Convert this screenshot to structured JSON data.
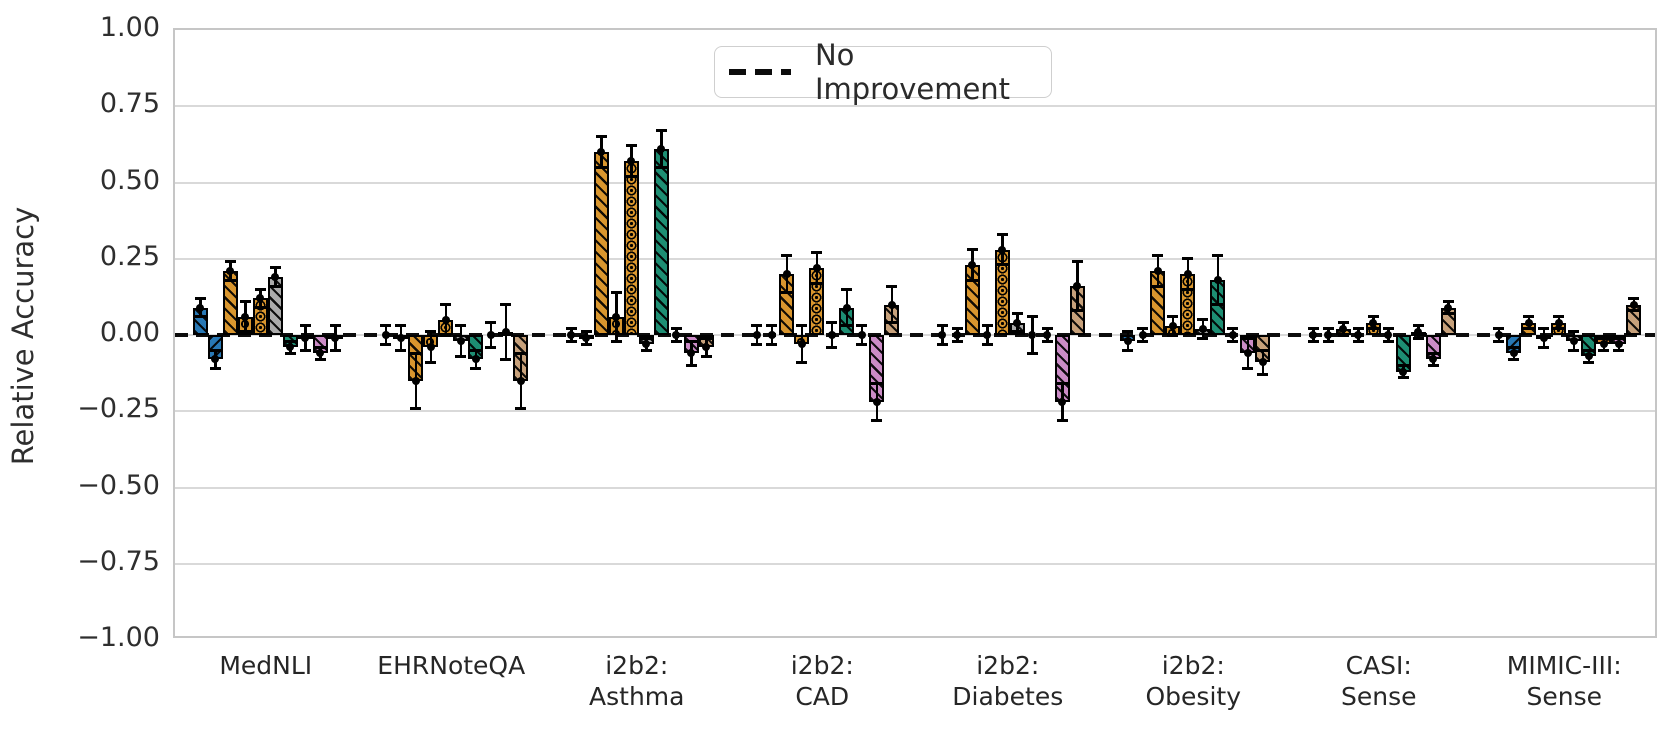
{
  "figure": {
    "ylabel": "Relative Accuracy",
    "legend": {
      "label": "No Improvement"
    }
  },
  "y_axis": {
    "ticks": [
      "1.00",
      "0.75",
      "0.50",
      "0.25",
      "0.00",
      "−0.25",
      "−0.50",
      "−0.75",
      "−1.00"
    ],
    "tick_values": [
      1.0,
      0.75,
      0.5,
      0.25,
      0.0,
      -0.25,
      -0.5,
      -0.75,
      -1.0
    ]
  },
  "x_axis": {
    "tick_lines": [
      [
        "MedNLI"
      ],
      [
        "EHRNoteQA"
      ],
      [
        "i2b2:",
        "Asthma"
      ],
      [
        "i2b2:",
        "CAD"
      ],
      [
        "i2b2:",
        "Diabetes"
      ],
      [
        "i2b2:",
        "Obesity"
      ],
      [
        "CASI:",
        "Sense"
      ],
      [
        "MIMIC-III:",
        "Sense"
      ]
    ]
  },
  "chart_data": {
    "type": "bar",
    "title": "",
    "xlabel": "",
    "ylabel": "Relative Accuracy",
    "ylim": [
      -1.0,
      1.0
    ],
    "grid": true,
    "baseline": {
      "y": 0,
      "style": "dashed",
      "color": "#0c0c0c",
      "label": "No Improvement",
      "legend_position": "top-center"
    },
    "error_bars": true,
    "marker": {
      "shape": "circle",
      "color": "#000000"
    },
    "categories": [
      "MedNLI",
      "EHRNoteQA",
      "i2b2: Asthma",
      "i2b2: CAD",
      "i2b2: Diabetes",
      "i2b2: Obesity",
      "CASI: Sense",
      "MIMIC-III: Sense"
    ],
    "series": [
      {
        "name": "series-1-blue-backslash",
        "color": "#2878b5",
        "hatch": "\\",
        "values": [
          0.09,
          0.0,
          0.0,
          0.0,
          0.0,
          -0.02,
          0.0,
          0.0
        ],
        "errors": [
          0.03,
          0.03,
          0.02,
          0.03,
          0.03,
          0.03,
          0.02,
          0.02
        ]
      },
      {
        "name": "series-2-blue-slash",
        "color": "#2878b5",
        "hatch": "/",
        "values": [
          -0.08,
          -0.01,
          -0.01,
          0.0,
          0.0,
          0.0,
          0.0,
          -0.06
        ],
        "errors": [
          0.03,
          0.04,
          0.02,
          0.03,
          0.02,
          0.02,
          0.02,
          0.02
        ]
      },
      {
        "name": "series-3-orange-backslash",
        "color": "#d9962e",
        "hatch": "\\",
        "values": [
          0.21,
          -0.15,
          0.6,
          0.2,
          0.23,
          0.21,
          0.02,
          0.04
        ],
        "errors": [
          0.03,
          0.09,
          0.05,
          0.06,
          0.05,
          0.05,
          0.02,
          0.02
        ]
      },
      {
        "name": "series-4-orange-circles",
        "color": "#d9962e",
        "hatch": "o",
        "values": [
          0.06,
          -0.04,
          0.06,
          -0.03,
          0.0,
          0.03,
          0.0,
          -0.01
        ],
        "errors": [
          0.05,
          0.05,
          0.08,
          0.06,
          0.03,
          0.03,
          0.02,
          0.03
        ]
      },
      {
        "name": "series-5-orange-dotted-circles",
        "color": "#d9962e",
        "hatch": "O.",
        "values": [
          0.12,
          0.05,
          0.57,
          0.22,
          0.28,
          0.2,
          0.04,
          0.04
        ],
        "errors": [
          0.03,
          0.05,
          0.05,
          0.05,
          0.05,
          0.05,
          0.02,
          0.02
        ]
      },
      {
        "name": "series-6-gray-backslash",
        "color": "#ababab",
        "hatch": "\\",
        "values": [
          0.19,
          -0.02,
          -0.03,
          0.0,
          0.04,
          0.02,
          0.0,
          -0.02
        ],
        "errors": [
          0.03,
          0.05,
          0.02,
          0.04,
          0.03,
          0.03,
          0.02,
          0.03
        ]
      },
      {
        "name": "series-7-green-backslash",
        "color": "#1d8e73",
        "hatch": "\\",
        "values": [
          -0.04,
          -0.08,
          0.61,
          0.09,
          0.0,
          0.18,
          -0.12,
          -0.07
        ],
        "errors": [
          0.02,
          0.03,
          0.06,
          0.06,
          0.06,
          0.08,
          0.02,
          0.02
        ]
      },
      {
        "name": "series-8-darkorange-slash",
        "color": "#c87e2e",
        "hatch": "/",
        "values": [
          -0.01,
          0.0,
          0.0,
          0.0,
          0.0,
          0.0,
          0.01,
          -0.03
        ],
        "errors": [
          0.04,
          0.04,
          0.02,
          0.03,
          0.02,
          0.02,
          0.02,
          0.02
        ]
      },
      {
        "name": "series-9-orchid-backslash",
        "color": "#cb8bc6",
        "hatch": "\\",
        "values": [
          -0.06,
          0.01,
          -0.06,
          -0.22,
          -0.22,
          -0.06,
          -0.08,
          -0.03
        ],
        "errors": [
          0.02,
          0.09,
          0.04,
          0.06,
          0.06,
          0.05,
          0.02,
          0.02
        ]
      },
      {
        "name": "series-10-tan-backslash",
        "color": "#c7a17b",
        "hatch": "\\",
        "values": [
          -0.01,
          -0.15,
          -0.04,
          0.1,
          0.16,
          -0.09,
          0.09,
          0.1
        ],
        "errors": [
          0.04,
          0.09,
          0.03,
          0.06,
          0.08,
          0.04,
          0.02,
          0.02
        ]
      }
    ]
  }
}
